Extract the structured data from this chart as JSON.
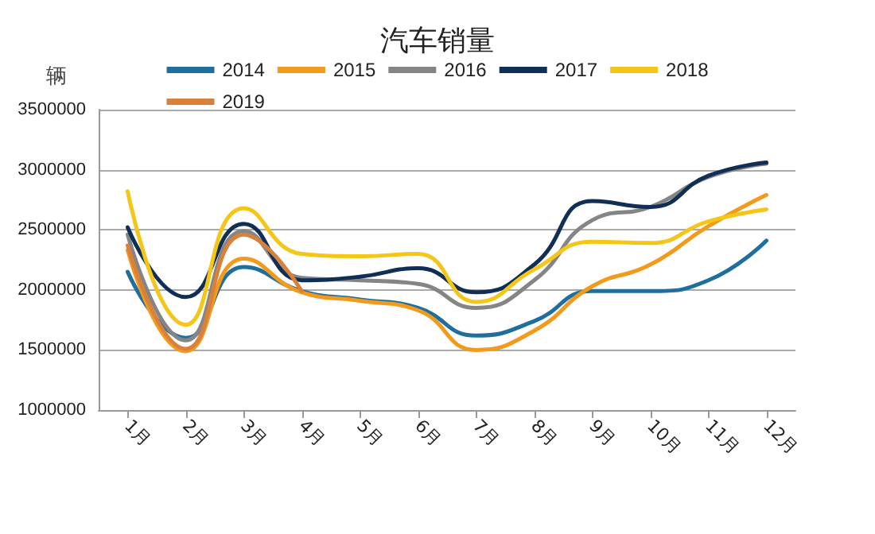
{
  "chart_data": {
    "type": "line",
    "title": "汽车销量",
    "ylabel": "辆",
    "categories": [
      "1月",
      "2月",
      "3月",
      "4月",
      "5月",
      "6月",
      "7月",
      "8月",
      "9月",
      "10月",
      "11月",
      "12月"
    ],
    "series": [
      {
        "name": "2014",
        "color": "#1f6f9e",
        "values": [
          2150000,
          1600000,
          2190000,
          1990000,
          1920000,
          1850000,
          1620000,
          1740000,
          1990000,
          1990000,
          2080000,
          2410000
        ]
      },
      {
        "name": "2015",
        "color": "#f29a1c",
        "values": [
          2330000,
          1490000,
          2260000,
          1980000,
          1910000,
          1830000,
          1500000,
          1660000,
          2030000,
          2210000,
          2530000,
          2790000
        ]
      },
      {
        "name": "2016",
        "color": "#858585",
        "values": [
          2460000,
          1580000,
          2490000,
          2100000,
          2080000,
          2050000,
          1850000,
          2080000,
          2580000,
          2690000,
          2940000,
          3050000
        ]
      },
      {
        "name": "2017",
        "color": "#102f55",
        "values": [
          2520000,
          1940000,
          2550000,
          2080000,
          2110000,
          2180000,
          1980000,
          2210000,
          2740000,
          2690000,
          2950000,
          3060000
        ]
      },
      {
        "name": "2018",
        "color": "#f5c518",
        "values": [
          2820000,
          1710000,
          2680000,
          2300000,
          2280000,
          2300000,
          1900000,
          2170000,
          2400000,
          2390000,
          2570000,
          2670000
        ]
      },
      {
        "name": "2019",
        "color": "#d9813a",
        "values": [
          2370000,
          1510000,
          2460000,
          1990000,
          null,
          null,
          null,
          null,
          null,
          null,
          null,
          null
        ]
      }
    ],
    "ylim": [
      1000000,
      3500000
    ],
    "yticks": [
      1000000,
      1500000,
      2000000,
      2500000,
      3000000,
      3500000
    ],
    "grid": "y",
    "legend": "top",
    "marker": "none",
    "line_style": "solid"
  }
}
